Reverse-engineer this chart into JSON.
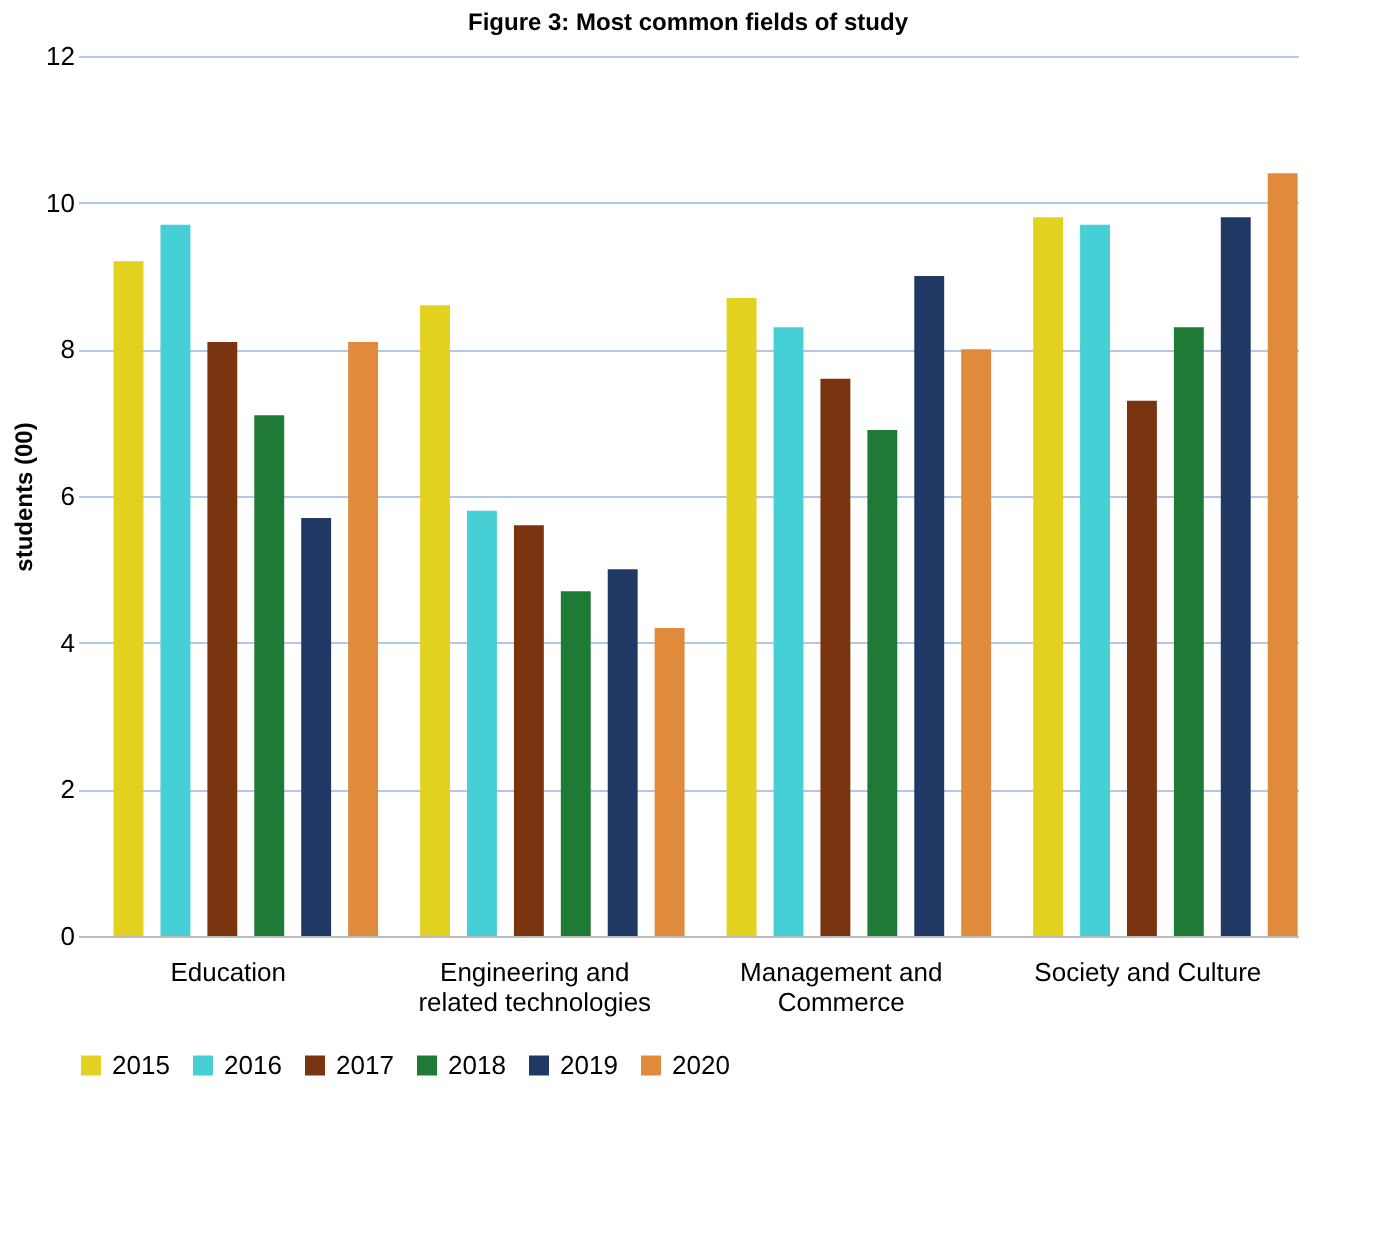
{
  "chart_data": {
    "type": "bar",
    "title": "Figure 3: Most common fields of study",
    "ylabel": "students  (00)",
    "categories": [
      "Education",
      "Engineering and related technologies",
      "Management and Commerce",
      "Society and Culture"
    ],
    "series": [
      {
        "name": "2015",
        "color": "#e3d11f",
        "values": [
          9.2,
          8.6,
          8.7,
          9.8
        ]
      },
      {
        "name": "2016",
        "color": "#47cfd6",
        "values": [
          9.7,
          5.8,
          8.3,
          9.7
        ]
      },
      {
        "name": "2017",
        "color": "#7a3510",
        "values": [
          8.1,
          5.6,
          7.6,
          7.3
        ]
      },
      {
        "name": "2018",
        "color": "#1e7a34",
        "values": [
          7.1,
          4.7,
          6.9,
          8.3
        ]
      },
      {
        "name": "2019",
        "color": "#1f3864",
        "values": [
          5.7,
          5.0,
          9.0,
          9.8
        ]
      },
      {
        "name": "2020",
        "color": "#e08a3c",
        "values": [
          8.1,
          4.2,
          8.0,
          10.4
        ]
      }
    ],
    "ylim": [
      0,
      12
    ],
    "yticks": [
      0,
      2,
      4,
      6,
      8,
      10,
      12
    ],
    "grid": "y",
    "legend": "bottom"
  }
}
